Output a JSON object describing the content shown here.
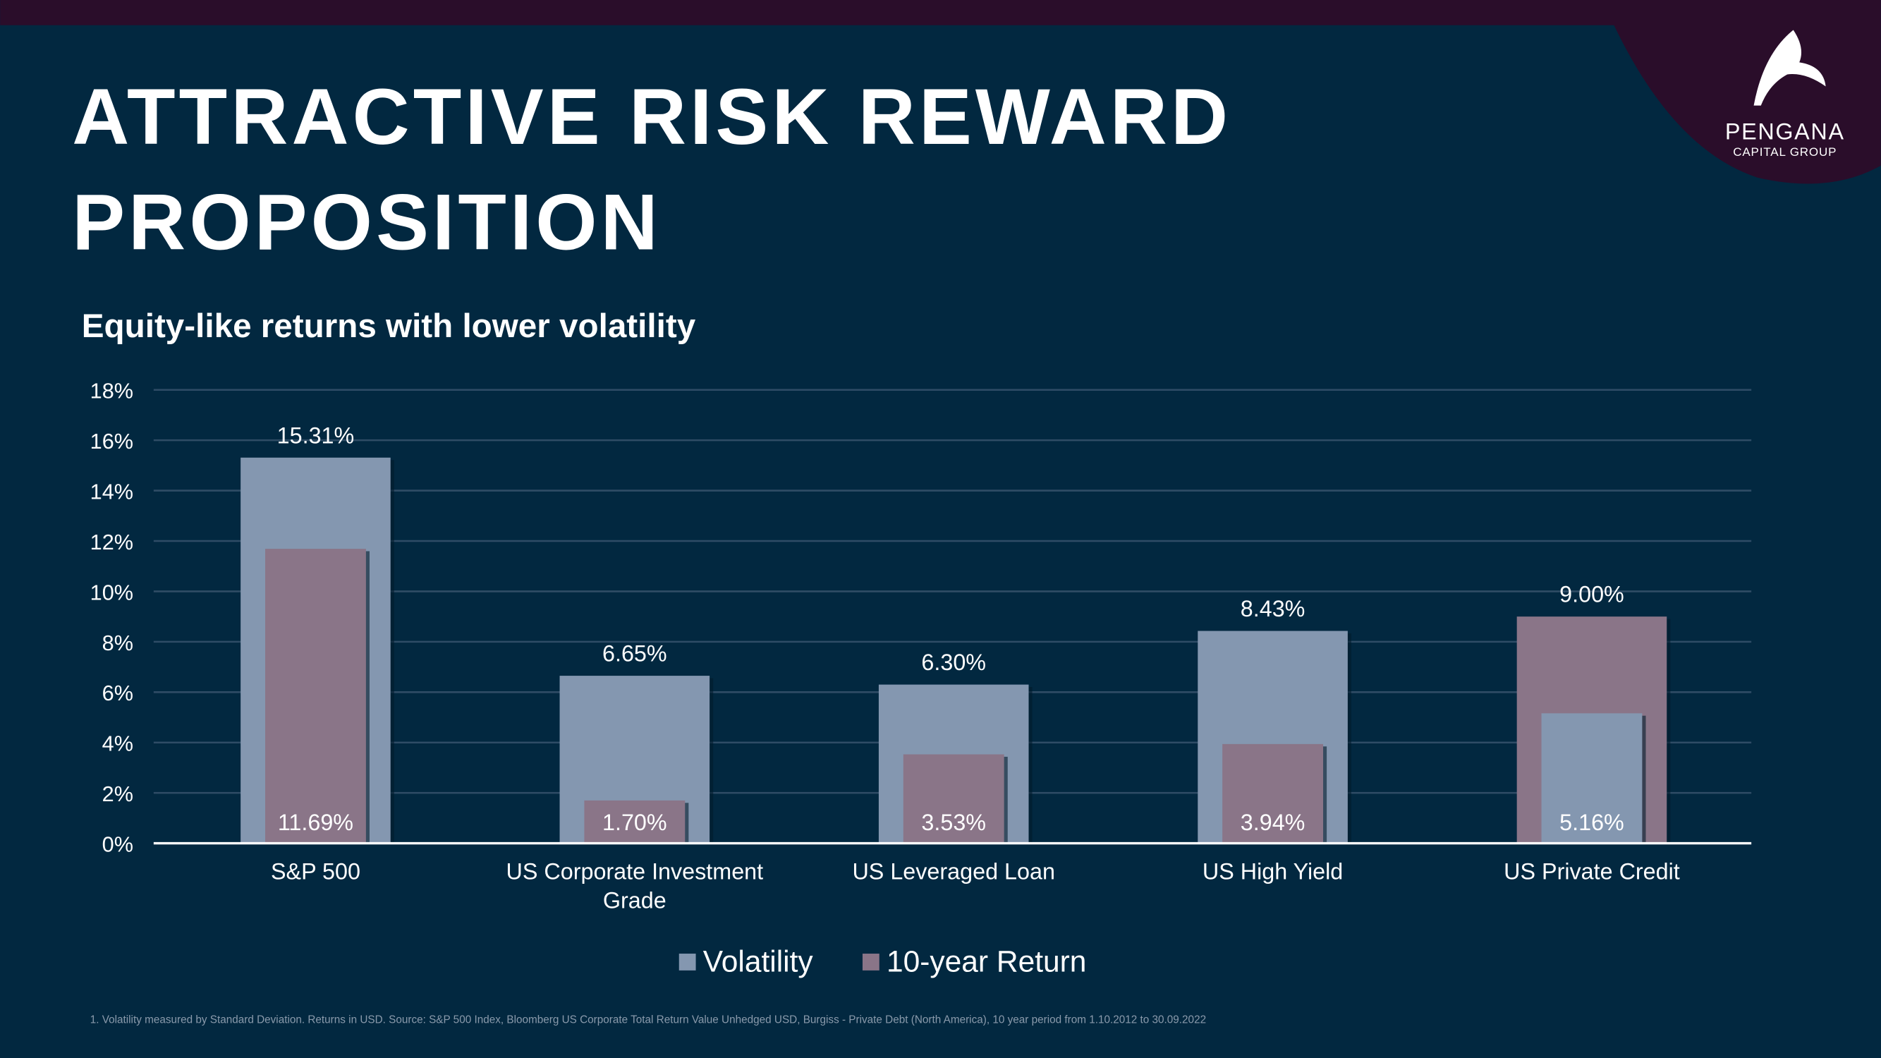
{
  "slide": {
    "title_lines": [
      "ATTRACTIVE RISK REWARD",
      "PROPOSITION"
    ],
    "logo": {
      "name": "PENGANA",
      "tagline": "CAPITAL GROUP"
    },
    "footnote": "1. Volatility measured by Standard Deviation.  Returns in USD. Source: S&P 500 Index, Bloomberg US Corporate Total Return Value Unhedged USD, Burgiss - Private Debt (North America), 10 year period from 1.10.2012 to 30.09.2022"
  },
  "chart_data": {
    "type": "overlapping-bar",
    "title": "Equity-like returns with lower volatility",
    "categories": [
      "S&P 500",
      "US Corporate Investment Grade",
      "US Leveraged Loan",
      "US High Yield",
      "US Private Credit"
    ],
    "series": [
      {
        "name": "Volatility",
        "color": "#8497b0",
        "values": [
          15.31,
          6.65,
          6.3,
          8.43,
          5.16
        ],
        "value_labels": [
          "15.31%",
          "6.65%",
          "6.30%",
          "8.43%",
          "5.16%"
        ]
      },
      {
        "name": "10-year Return",
        "color": "#8a7588",
        "values": [
          11.69,
          1.7,
          3.53,
          3.94,
          9.0
        ],
        "value_labels": [
          "11.69%",
          "1.70%",
          "3.53%",
          "3.94%",
          "9.00%"
        ]
      }
    ],
    "ylim": [
      0,
      18
    ],
    "yticks": [
      {
        "value": 0,
        "label": "0%"
      },
      {
        "value": 2,
        "label": "2%"
      },
      {
        "value": 4,
        "label": "4%"
      },
      {
        "value": 6,
        "label": "6%"
      },
      {
        "value": 8,
        "label": "8%"
      },
      {
        "value": 10,
        "label": "10%"
      },
      {
        "value": 12,
        "label": "12%"
      },
      {
        "value": 14,
        "label": "14%"
      },
      {
        "value": 16,
        "label": "16%"
      },
      {
        "value": 18,
        "label": "18%"
      }
    ],
    "grid": true,
    "legend": "bottom"
  }
}
